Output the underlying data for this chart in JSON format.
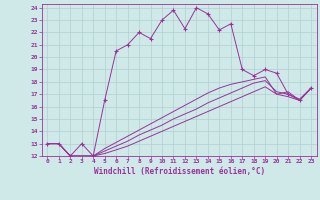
{
  "xlabel": "Windchill (Refroidissement éolien,°C)",
  "bg_color": "#cfe9e9",
  "grid_color": "#b0d0d0",
  "line_color": "#993399",
  "xlim": [
    -0.5,
    23.5
  ],
  "ylim": [
    12,
    24.3
  ],
  "yticks": [
    12,
    13,
    14,
    15,
    16,
    17,
    18,
    19,
    20,
    21,
    22,
    23,
    24
  ],
  "xticks": [
    0,
    1,
    2,
    3,
    4,
    5,
    6,
    7,
    8,
    9,
    10,
    11,
    12,
    13,
    14,
    15,
    16,
    17,
    18,
    19,
    20,
    21,
    22,
    23
  ],
  "series": [
    {
      "x": [
        0,
        1,
        2,
        3,
        4,
        5,
        6,
        7,
        8,
        9,
        10,
        11,
        12,
        13,
        14,
        15,
        16,
        17,
        18,
        19,
        20,
        21,
        22,
        23
      ],
      "y": [
        13,
        13,
        12,
        13,
        12,
        16.5,
        20.5,
        21,
        22,
        21.5,
        23,
        23.8,
        22.3,
        24,
        23.5,
        22.2,
        22.7,
        19,
        18.5,
        19,
        18.7,
        17,
        16.5,
        17.5
      ],
      "marker": true
    },
    {
      "x": [
        0,
        1,
        2,
        3,
        4,
        5,
        6,
        7,
        8,
        9,
        10,
        11,
        12,
        13,
        14,
        15,
        16,
        17,
        18,
        19,
        20,
        21,
        22,
        23
      ],
      "y": [
        13,
        13,
        12,
        12,
        12,
        12.2,
        12.5,
        12.8,
        13.2,
        13.6,
        14.0,
        14.4,
        14.8,
        15.2,
        15.6,
        16.0,
        16.4,
        16.8,
        17.2,
        17.6,
        17.0,
        16.8,
        16.5,
        17.5
      ],
      "marker": false
    },
    {
      "x": [
        0,
        1,
        2,
        3,
        4,
        5,
        6,
        7,
        8,
        9,
        10,
        11,
        12,
        13,
        14,
        15,
        16,
        17,
        18,
        19,
        20,
        21,
        22,
        23
      ],
      "y": [
        13,
        13,
        12,
        12,
        12,
        12.4,
        12.8,
        13.2,
        13.7,
        14.1,
        14.5,
        15.0,
        15.4,
        15.8,
        16.3,
        16.7,
        17.1,
        17.5,
        17.9,
        18.1,
        17.2,
        17.0,
        16.6,
        17.5
      ],
      "marker": false
    },
    {
      "x": [
        0,
        1,
        2,
        3,
        4,
        5,
        6,
        7,
        8,
        9,
        10,
        11,
        12,
        13,
        14,
        15,
        16,
        17,
        18,
        19,
        20,
        21,
        22,
        23
      ],
      "y": [
        13,
        13,
        12,
        12,
        12,
        12.6,
        13.1,
        13.6,
        14.1,
        14.6,
        15.1,
        15.6,
        16.1,
        16.6,
        17.1,
        17.5,
        17.8,
        18.0,
        18.2,
        18.4,
        17.0,
        17.2,
        16.5,
        17.5
      ],
      "marker": false
    }
  ]
}
